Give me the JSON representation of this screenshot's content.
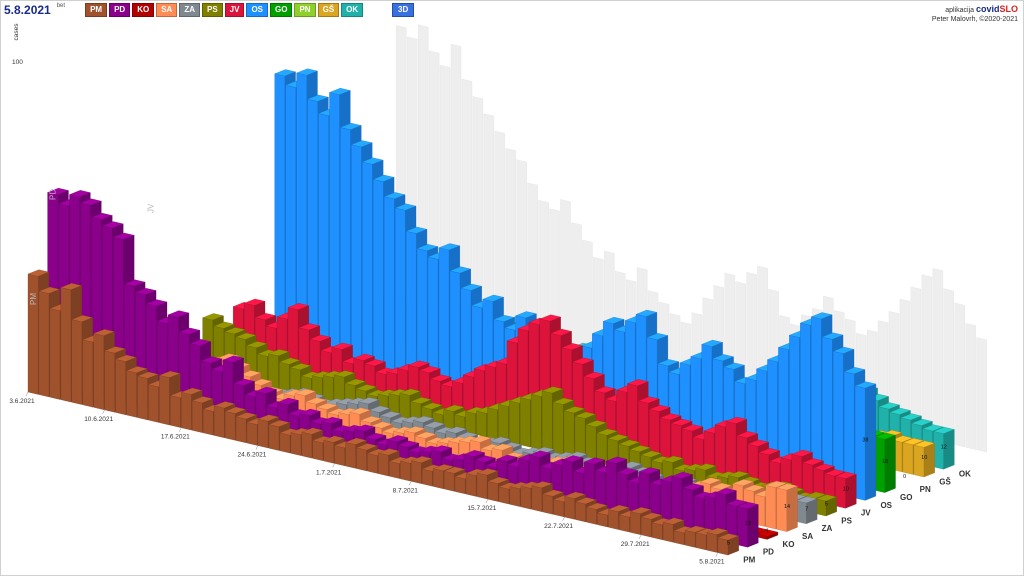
{
  "header": {
    "date": "5.8.2021",
    "date_suffix": "bet",
    "view_button": "3D",
    "credit_line1": "aplikacija",
    "brand_a": "covid",
    "brand_b": "SLO",
    "credit_line2": "Peter Malovrh, ©2020-2021"
  },
  "chips": [
    {
      "label": "PM",
      "color": "#a0522d"
    },
    {
      "label": "PD",
      "color": "#8b008b"
    },
    {
      "label": "KO",
      "color": "#b00000"
    },
    {
      "label": "SA",
      "color": "#ff8c55"
    },
    {
      "label": "ZA",
      "color": "#808890"
    },
    {
      "label": "PS",
      "color": "#808000"
    },
    {
      "label": "JV",
      "color": "#dc143c"
    },
    {
      "label": "OS",
      "color": "#1e90ff"
    },
    {
      "label": "GO",
      "color": "#00a000"
    },
    {
      "label": "PN",
      "color": "#8fd02a"
    },
    {
      "label": "GŠ",
      "color": "#daa520"
    },
    {
      "label": "OK",
      "color": "#20b2aa"
    }
  ],
  "chart_data": {
    "type": "bar",
    "subtype": "3d-bar",
    "ylabel": "cases",
    "y_tick": 100,
    "x_ticks": [
      "3.6.2021",
      "10.6.2021",
      "17.6.2021",
      "24.6.2021",
      "1.7.2021",
      "8.7.2021",
      "15.7.2021",
      "22.7.2021",
      "29.7.2021",
      "5.8.2021"
    ],
    "ghost_labels": [
      "PM",
      "PD",
      "JV"
    ],
    "series": [
      {
        "name": "PM",
        "color": "#a0522d",
        "latest": 5,
        "values": [
          40,
          35,
          30,
          38,
          28,
          22,
          25,
          20,
          18,
          15,
          14,
          12,
          16,
          10,
          12,
          10,
          8,
          10,
          9,
          8,
          7,
          9,
          8,
          6,
          7,
          8,
          6,
          7,
          6,
          8,
          7,
          6,
          7,
          5,
          6,
          7,
          5,
          6,
          6,
          5,
          7,
          8,
          6,
          5,
          6,
          7,
          8,
          6,
          5,
          7,
          6,
          5,
          4,
          6,
          5,
          7,
          6,
          5,
          6,
          4,
          5,
          5,
          6,
          5
        ]
      },
      {
        "name": "PD",
        "color": "#8b008b",
        "latest": 13,
        "values": [
          65,
          62,
          66,
          64,
          60,
          58,
          55,
          40,
          38,
          35,
          30,
          33,
          28,
          25,
          20,
          18,
          22,
          15,
          12,
          14,
          10,
          12,
          9,
          10,
          8,
          9,
          7,
          8,
          9,
          7,
          6,
          8,
          7,
          6,
          7,
          8,
          6,
          7,
          9,
          8,
          7,
          10,
          9,
          12,
          14,
          11,
          13,
          15,
          12,
          16,
          14,
          18,
          15,
          13,
          17,
          14,
          16,
          18,
          15,
          13,
          14,
          16,
          13,
          13
        ]
      },
      {
        "name": "KO",
        "color": "#b00000",
        "latest": 1,
        "values": [
          0,
          0,
          0,
          0,
          0,
          0,
          0,
          0,
          0,
          0,
          0,
          0,
          0,
          0,
          0,
          0,
          2,
          1,
          0,
          0,
          0,
          1,
          0,
          0,
          0,
          1,
          2,
          0,
          0,
          1,
          0,
          0,
          0,
          0,
          0,
          0,
          2,
          0,
          0,
          0,
          1,
          2,
          3,
          2,
          1,
          0,
          0,
          0,
          0,
          1,
          0,
          0,
          0,
          0,
          0,
          0,
          0,
          0,
          0,
          0,
          0,
          0,
          1,
          1
        ]
      },
      {
        "name": "SA",
        "color": "#ff8c55",
        "latest": 14,
        "values": [
          0,
          0,
          0,
          0,
          3,
          4,
          5,
          6,
          5,
          8,
          10,
          12,
          14,
          12,
          10,
          8,
          6,
          5,
          7,
          8,
          6,
          5,
          4,
          5,
          6,
          4,
          3,
          2,
          3,
          4,
          3,
          2,
          3,
          4,
          5,
          6,
          4,
          5,
          3,
          2,
          3,
          4,
          5,
          6,
          4,
          5,
          6,
          7,
          5,
          4,
          3,
          4,
          5,
          6,
          7,
          8,
          10,
          9,
          8,
          12,
          11,
          10,
          14,
          14
        ]
      },
      {
        "name": "ZA",
        "color": "#808890",
        "latest": 7,
        "values": [
          0,
          0,
          0,
          0,
          0,
          0,
          0,
          0,
          0,
          0,
          0,
          0,
          0,
          0,
          0,
          2,
          3,
          4,
          3,
          2,
          3,
          4,
          5,
          6,
          4,
          3,
          2,
          3,
          4,
          3,
          2,
          3,
          2,
          1,
          2,
          3,
          2,
          1,
          2,
          3,
          2,
          3,
          4,
          3,
          2,
          3,
          4,
          5,
          4,
          3,
          2,
          3,
          4,
          3,
          2,
          3,
          4,
          5,
          6,
          5,
          6,
          7,
          7,
          7
        ]
      },
      {
        "name": "PS",
        "color": "#808000",
        "latest": 5,
        "values": [
          0,
          0,
          0,
          0,
          0,
          0,
          0,
          18,
          16,
          15,
          14,
          12,
          10,
          11,
          9,
          8,
          6,
          7,
          8,
          9,
          7,
          6,
          5,
          6,
          7,
          8,
          6,
          5,
          4,
          6,
          5,
          7,
          8,
          10,
          12,
          14,
          16,
          18,
          20,
          17,
          15,
          14,
          12,
          10,
          9,
          8,
          7,
          6,
          5,
          6,
          4,
          5,
          6,
          4,
          5,
          6,
          5,
          4,
          5,
          6,
          5,
          4,
          5,
          5
        ]
      },
      {
        "name": "JV",
        "color": "#dc143c",
        "latest": 10,
        "values": [
          0,
          0,
          0,
          0,
          0,
          0,
          0,
          0,
          20,
          22,
          18,
          16,
          20,
          24,
          18,
          15,
          12,
          14,
          10,
          12,
          11,
          9,
          10,
          12,
          14,
          13,
          11,
          10,
          12,
          15,
          18,
          20,
          22,
          30,
          35,
          38,
          40,
          36,
          32,
          28,
          24,
          20,
          18,
          22,
          25,
          20,
          18,
          16,
          15,
          14,
          12,
          15,
          18,
          20,
          16,
          14,
          12,
          10,
          12,
          14,
          12,
          11,
          10,
          10
        ]
      },
      {
        "name": "OS",
        "color": "#1e90ff",
        "latest": 38,
        "values": [
          0,
          0,
          0,
          0,
          0,
          0,
          0,
          0,
          0,
          0,
          98,
          95,
          100,
          92,
          88,
          96,
          85,
          80,
          75,
          70,
          65,
          62,
          55,
          50,
          48,
          52,
          45,
          40,
          35,
          38,
          32,
          30,
          35,
          28,
          25,
          22,
          20,
          24,
          30,
          35,
          40,
          38,
          42,
          45,
          38,
          30,
          28,
          32,
          35,
          40,
          36,
          34,
          30,
          32,
          36,
          40,
          45,
          50,
          55,
          58,
          52,
          48,
          42,
          38
        ]
      },
      {
        "name": "GO",
        "color": "#00a000",
        "latest": 18,
        "values": [
          0,
          0,
          0,
          0,
          0,
          0,
          0,
          0,
          0,
          0,
          0,
          0,
          0,
          0,
          0,
          0,
          0,
          0,
          0,
          0,
          2,
          3,
          4,
          5,
          3,
          2,
          3,
          4,
          5,
          6,
          4,
          3,
          2,
          3,
          4,
          5,
          6,
          4,
          3,
          2,
          3,
          4,
          5,
          6,
          8,
          10,
          12,
          10,
          8,
          6,
          5,
          4,
          5,
          6,
          8,
          10,
          12,
          14,
          15,
          16,
          17,
          18,
          18,
          18
        ]
      },
      {
        "name": "PN",
        "color": "#8fd02a",
        "latest": 0,
        "values": [
          0,
          0,
          0,
          0,
          0,
          0,
          0,
          0,
          0,
          0,
          0,
          0,
          0,
          0,
          0,
          0,
          0,
          0,
          0,
          0,
          0,
          0,
          0,
          0,
          1,
          0,
          0,
          2,
          0,
          0,
          0,
          0,
          1,
          0,
          0,
          0,
          0,
          0,
          0,
          0,
          0,
          0,
          0,
          0,
          0,
          0,
          0,
          0,
          0,
          0,
          0,
          0,
          0,
          0,
          0,
          0,
          0,
          0,
          0,
          0,
          0,
          0,
          0,
          0
        ]
      },
      {
        "name": "GŠ",
        "color": "#daa520",
        "latest": 10,
        "values": [
          0,
          0,
          0,
          0,
          0,
          0,
          0,
          0,
          0,
          0,
          0,
          0,
          0,
          0,
          0,
          0,
          0,
          0,
          0,
          0,
          6,
          8,
          7,
          6,
          5,
          4,
          6,
          7,
          8,
          6,
          5,
          4,
          3,
          4,
          5,
          6,
          5,
          4,
          3,
          4,
          5,
          4,
          3,
          2,
          3,
          4,
          5,
          6,
          7,
          8,
          6,
          5,
          4,
          5,
          6,
          7,
          8,
          9,
          8,
          10,
          11,
          10,
          10,
          10
        ]
      },
      {
        "name": "OK",
        "color": "#20b2aa",
        "latest": 12,
        "values": [
          0,
          0,
          0,
          0,
          0,
          0,
          0,
          0,
          0,
          0,
          0,
          10,
          12,
          14,
          12,
          11,
          13,
          10,
          12,
          14,
          15,
          13,
          12,
          14,
          16,
          15,
          14,
          12,
          10,
          11,
          12,
          10,
          9,
          10,
          11,
          12,
          10,
          9,
          8,
          10,
          12,
          14,
          10,
          8,
          9,
          10,
          11,
          12,
          10,
          9,
          8,
          10,
          12,
          14,
          16,
          18,
          20,
          18,
          16,
          15,
          14,
          13,
          12,
          12
        ]
      }
    ]
  }
}
